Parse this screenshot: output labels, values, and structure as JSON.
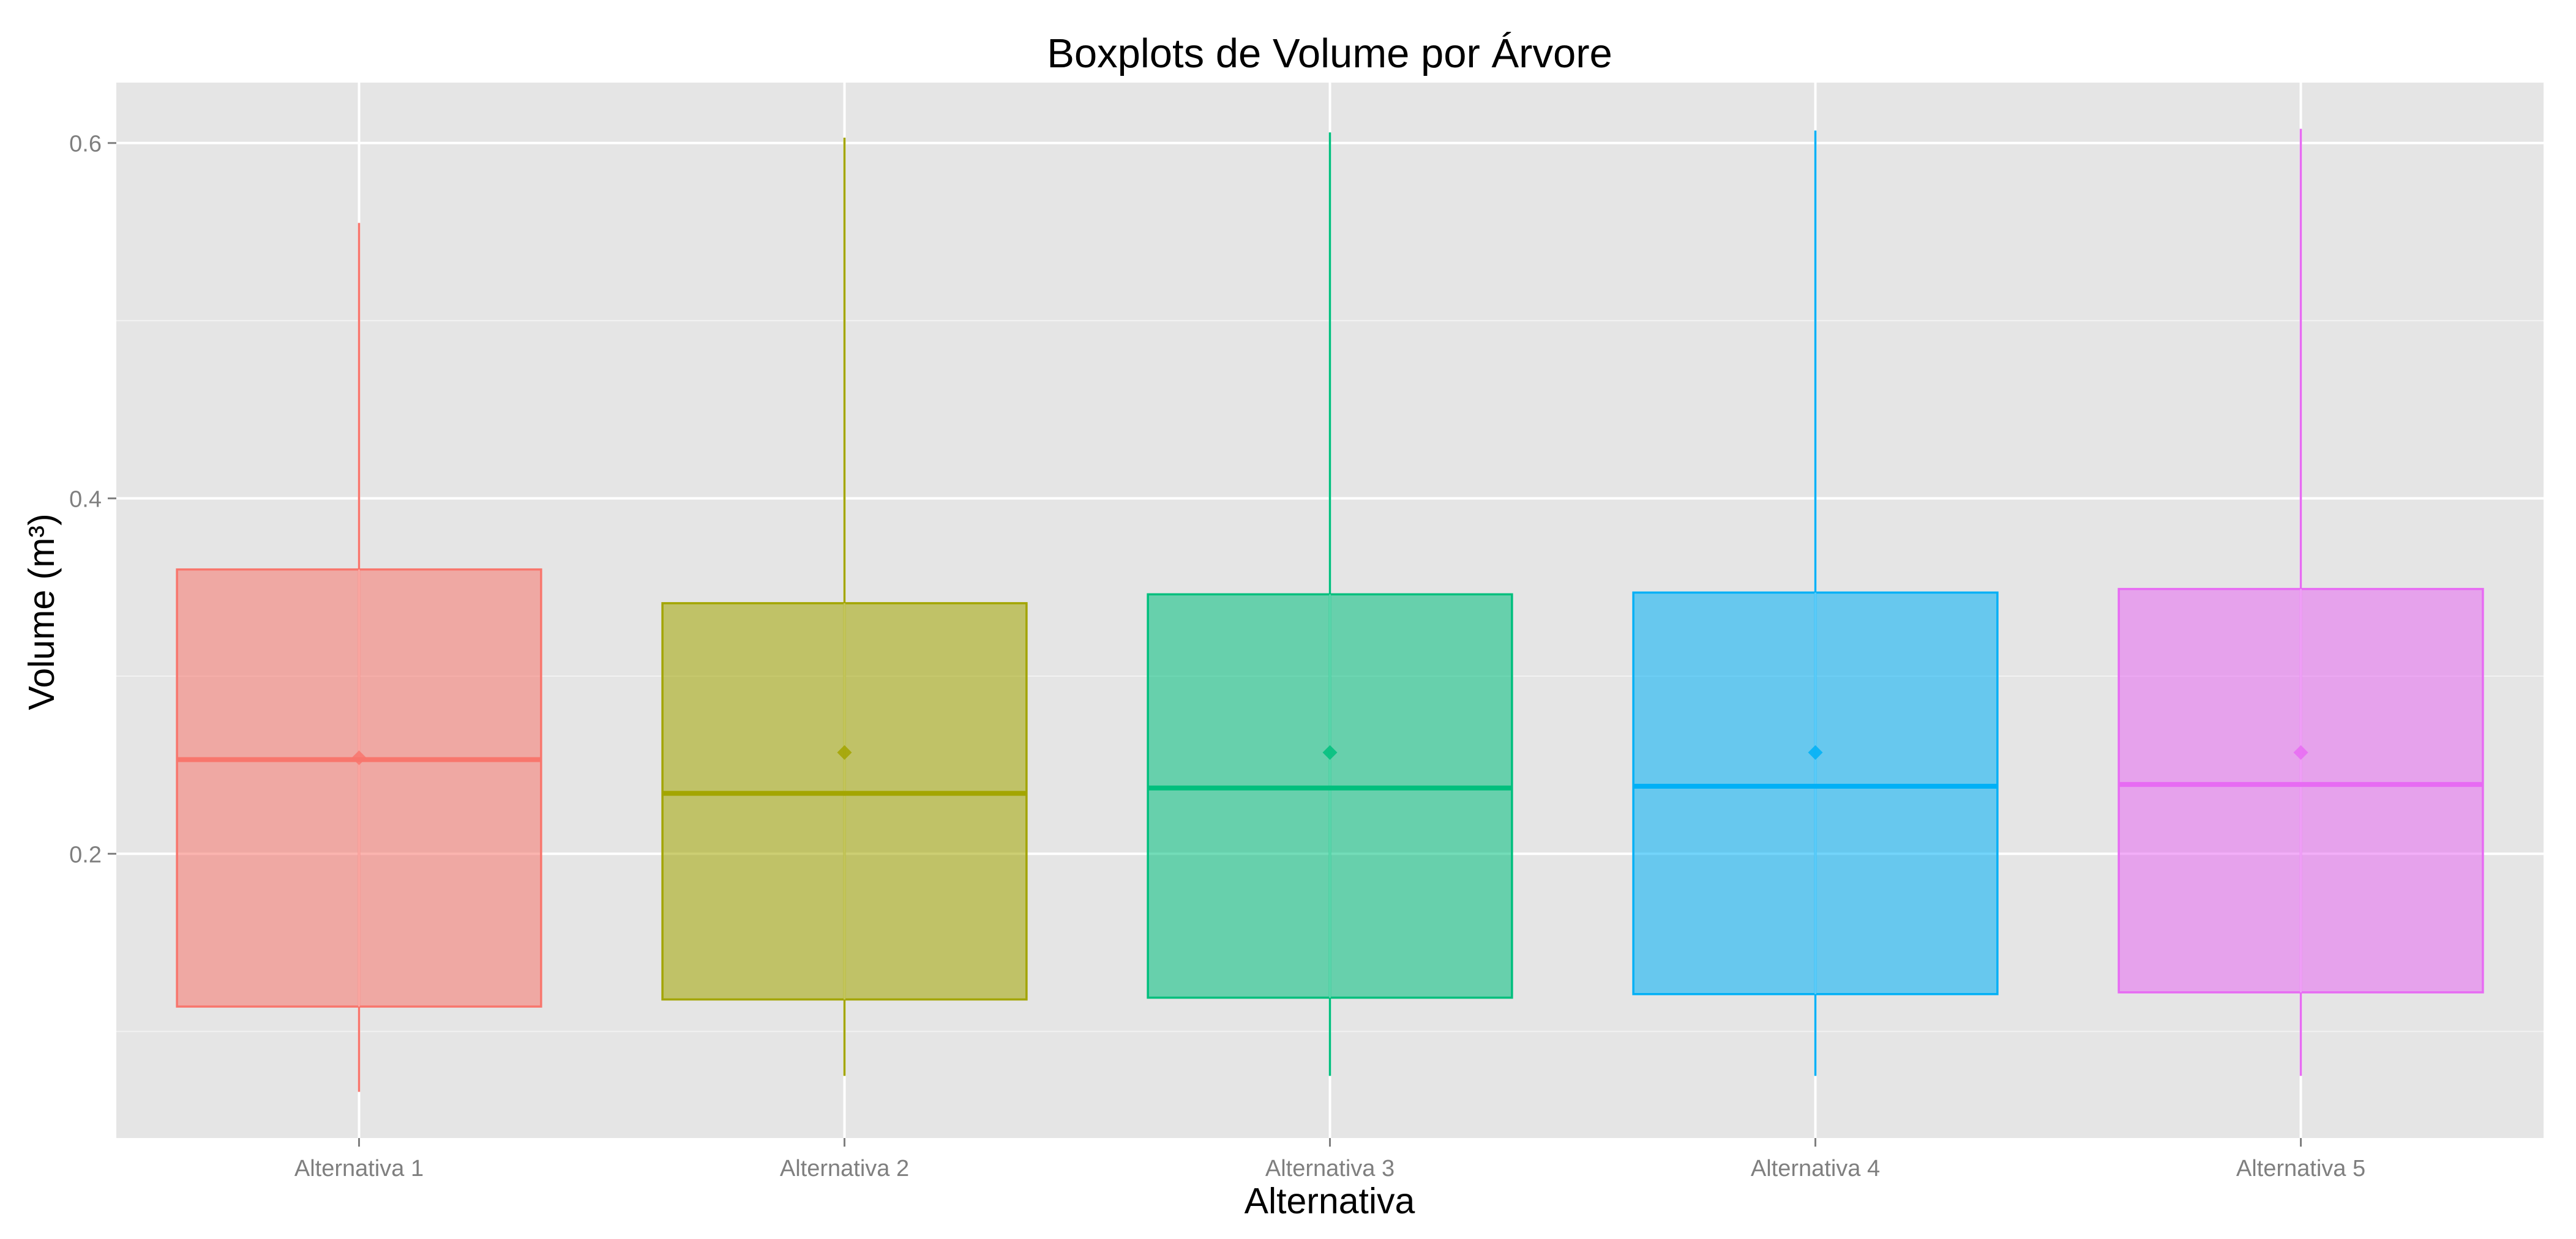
{
  "chart_data": {
    "type": "box",
    "title": "Boxplots de Volume por Árvore",
    "xlabel": "Alternativa",
    "ylabel": "Volume (m³)",
    "ylim": [
      0.04,
      0.634
    ],
    "yticks": [
      0.2,
      0.4,
      0.6
    ],
    "ytick_labels": [
      "0.2",
      "0.4",
      "0.6"
    ],
    "grid": true,
    "background": "#e5e5e5",
    "categories": [
      "Alternativa 1",
      "Alternativa 2",
      "Alternativa 3",
      "Alternativa 4",
      "Alternativa 5"
    ],
    "colors": [
      "#f8766d",
      "#a3a500",
      "#00bf7d",
      "#00b0f6",
      "#e76bf3"
    ],
    "boxes": [
      {
        "whisker_low": 0.066,
        "q1": 0.114,
        "median": 0.253,
        "q3": 0.36,
        "whisker_high": 0.555,
        "mean": 0.254
      },
      {
        "whisker_low": 0.075,
        "q1": 0.118,
        "median": 0.234,
        "q3": 0.341,
        "whisker_high": 0.603,
        "mean": 0.257
      },
      {
        "whisker_low": 0.075,
        "q1": 0.119,
        "median": 0.237,
        "q3": 0.346,
        "whisker_high": 0.606,
        "mean": 0.257
      },
      {
        "whisker_low": 0.075,
        "q1": 0.121,
        "median": 0.238,
        "q3": 0.347,
        "whisker_high": 0.607,
        "mean": 0.257
      },
      {
        "whisker_low": 0.075,
        "q1": 0.122,
        "median": 0.239,
        "q3": 0.349,
        "whisker_high": 0.608,
        "mean": 0.257
      }
    ]
  }
}
